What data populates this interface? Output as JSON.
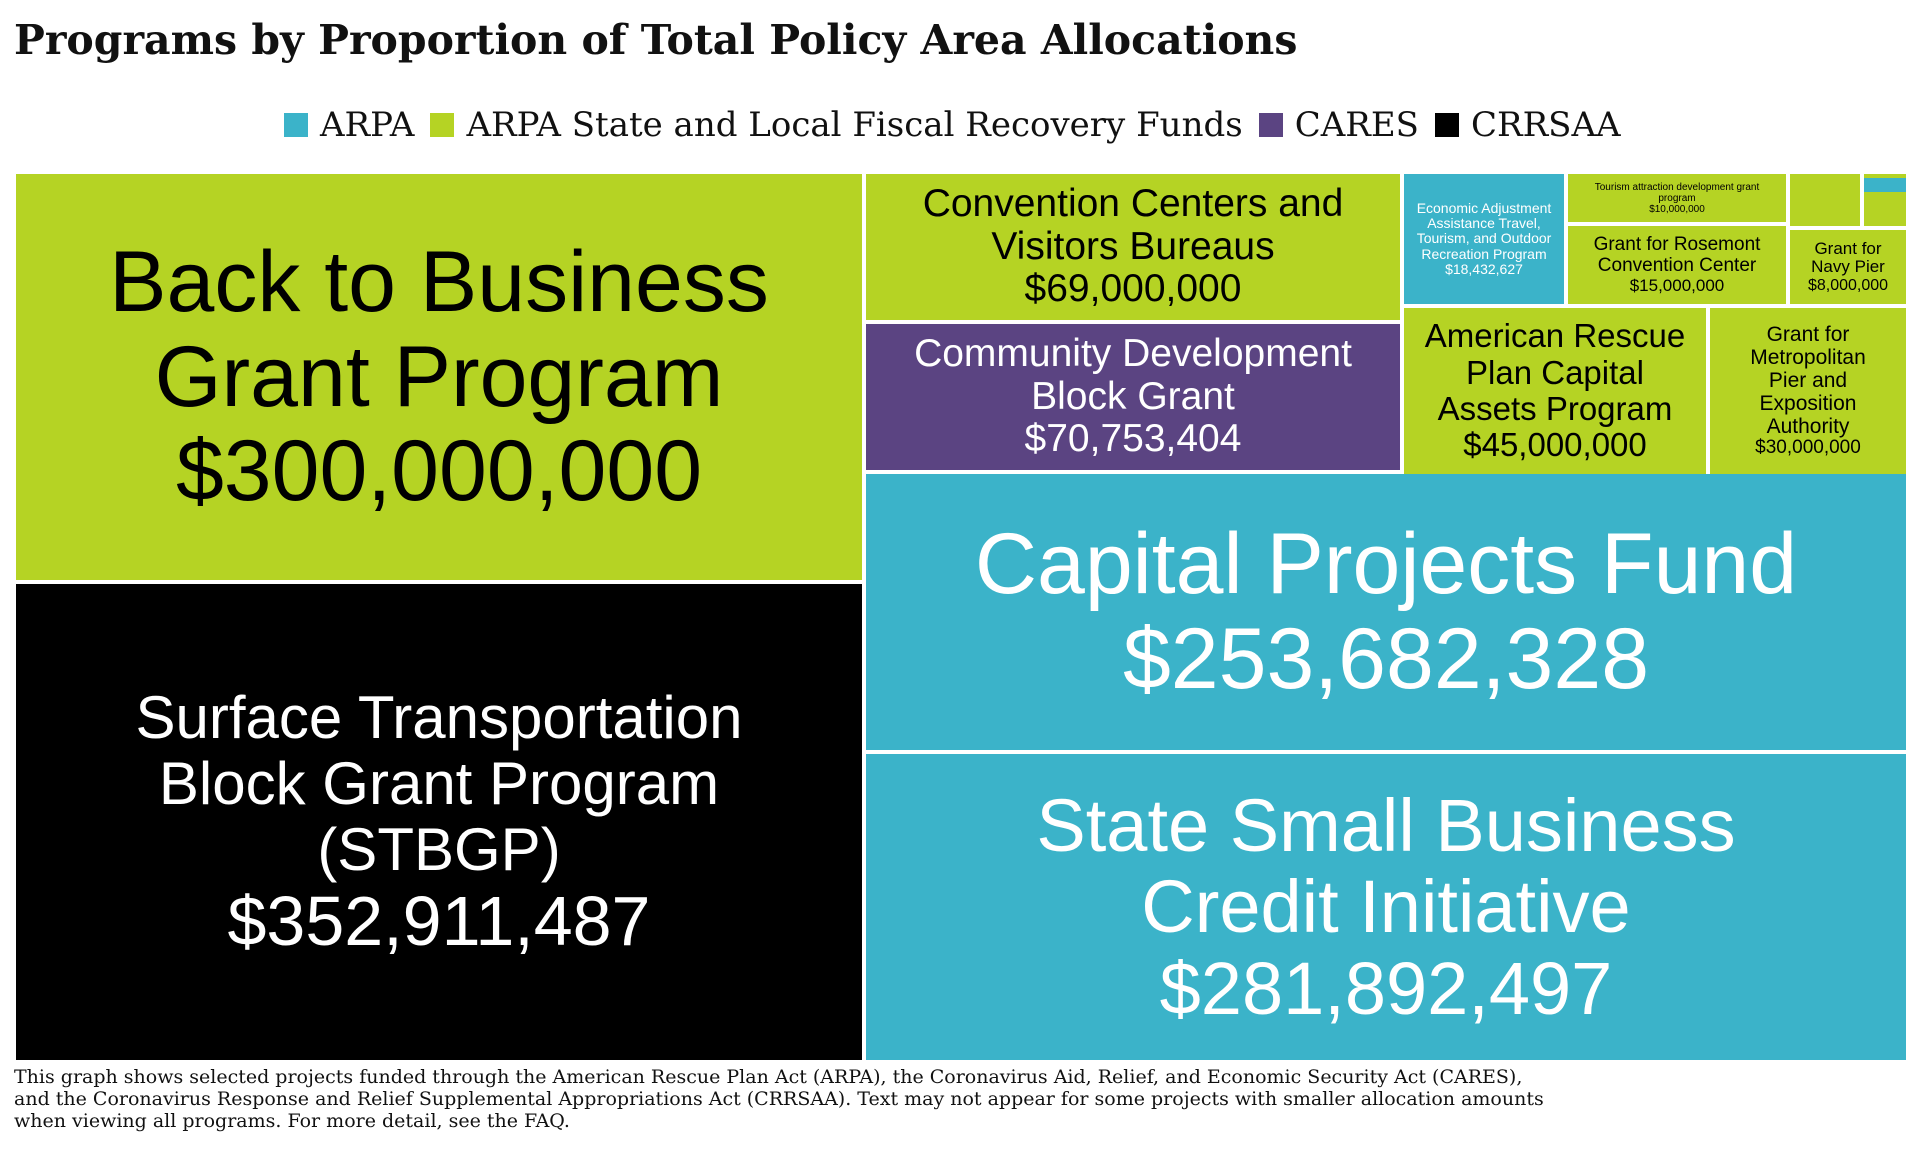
{
  "title": "Programs by Proportion of Total Policy Area Allocations",
  "colors": {
    "ARPA": "#3BB3C9",
    "ARPA State and Local Fiscal Recovery Funds": "#B5D324",
    "CARES": "#5B4482",
    "CRRSAA": "#000000"
  },
  "legend": [
    {
      "label": "ARPA",
      "color": "#3BB3C9"
    },
    {
      "label": "ARPA State and Local Fiscal Recovery Funds",
      "color": "#B5D324"
    },
    {
      "label": "CARES",
      "color": "#5B4482"
    },
    {
      "label": "CRRSAA",
      "color": "#000000"
    }
  ],
  "chart_data": {
    "type": "treemap",
    "value_unit": "USD",
    "items": [
      {
        "name": "Surface Transportation Block Grant Program (STBGP)",
        "label_lines": [
          "Surface Transportation",
          "Block Grant Program",
          "(STBGP)"
        ],
        "value_label": "$352,911,487",
        "value": 352911487,
        "group": "CRRSAA"
      },
      {
        "name": "Back to Business Grant Program",
        "label_lines": [
          "Back to Business",
          "Grant Program"
        ],
        "value_label": "$300,000,000",
        "value": 300000000,
        "group": "ARPA State and Local Fiscal Recovery Funds"
      },
      {
        "name": "State Small Business Credit Initiative",
        "label_lines": [
          "State Small Business",
          "Credit Initiative"
        ],
        "value_label": "$281,892,497",
        "value": 281892497,
        "group": "ARPA"
      },
      {
        "name": "Capital Projects Fund",
        "label_lines": [
          "Capital Projects Fund"
        ],
        "value_label": "$253,682,328",
        "value": 253682328,
        "group": "ARPA"
      },
      {
        "name": "Community Development Block Grant",
        "label_lines": [
          "Community Development",
          "Block Grant"
        ],
        "value_label": "$70,753,404",
        "value": 70753404,
        "group": "CARES"
      },
      {
        "name": "Convention Centers and Visitors Bureaus",
        "label_lines": [
          "Convention Centers and",
          "Visitors Bureaus"
        ],
        "value_label": "$69,000,000",
        "value": 69000000,
        "group": "ARPA State and Local Fiscal Recovery Funds"
      },
      {
        "name": "American Rescue Plan Capital Assets Program",
        "label_lines": [
          "American Rescue",
          "Plan Capital",
          "Assets Program"
        ],
        "value_label": "$45,000,000",
        "value": 45000000,
        "group": "ARPA State and Local Fiscal Recovery Funds"
      },
      {
        "name": "Grant for Metropolitan Pier and Exposition Authority",
        "label_lines": [
          "Grant for",
          "Metropolitan",
          "Pier and",
          "Exposition",
          "Authority"
        ],
        "value_label": "$30,000,000",
        "value": 30000000,
        "group": "ARPA State and Local Fiscal Recovery Funds"
      },
      {
        "name": "Economic Adjustment Assistance Travel, Tourism, and Outdoor Recreation Program",
        "label_lines": [
          "Economic Adjustment",
          "Assistance Travel,",
          "Tourism, and Outdoor",
          "Recreation Program"
        ],
        "value_label": "$18,432,627",
        "value": 18432627,
        "group": "ARPA"
      },
      {
        "name": "Grant for Rosemont Convention Center",
        "label_lines": [
          "Grant for Rosemont",
          "Convention Center"
        ],
        "value_label": "$15,000,000",
        "value": 15000000,
        "group": "ARPA State and Local Fiscal Recovery Funds"
      },
      {
        "name": "Tourism attraction development grant program",
        "label_lines": [
          "Tourism attraction development grant",
          "program"
        ],
        "value_label": "$10,000,000",
        "value": 10000000,
        "group": "ARPA State and Local Fiscal Recovery Funds"
      },
      {
        "name": "Grant for Navy Pier",
        "label_lines": [
          "Grant for",
          "Navy Pier"
        ],
        "value_label": "$8,000,000",
        "value": 8000000,
        "group": "ARPA State and Local Fiscal Recovery Funds"
      },
      {
        "name": "",
        "label_lines": [],
        "value_label": "",
        "value": null,
        "group": "ARPA State and Local Fiscal Recovery Funds"
      },
      {
        "name": "",
        "label_lines": [],
        "value_label": "",
        "value": null,
        "group": "ARPA State and Local Fiscal Recovery Funds"
      },
      {
        "name": "",
        "label_lines": [],
        "value_label": "",
        "value": null,
        "group": "ARPA State and Local Fiscal Recovery Funds"
      },
      {
        "name": "",
        "label_lines": [],
        "value_label": "",
        "value": null,
        "group": "ARPA"
      }
    ]
  },
  "footnote": [
    "This graph shows selected projects funded through the American Rescue Plan Act (ARPA), the Coronavirus Aid, Relief, and Economic Security Act (CARES),",
    "and the Coronavirus Response and Relief Supplemental Appropriations Act (CRRSAA). Text may not appear for some projects with smaller allocation amounts",
    " when viewing all programs. For more detail, see the FAQ."
  ]
}
